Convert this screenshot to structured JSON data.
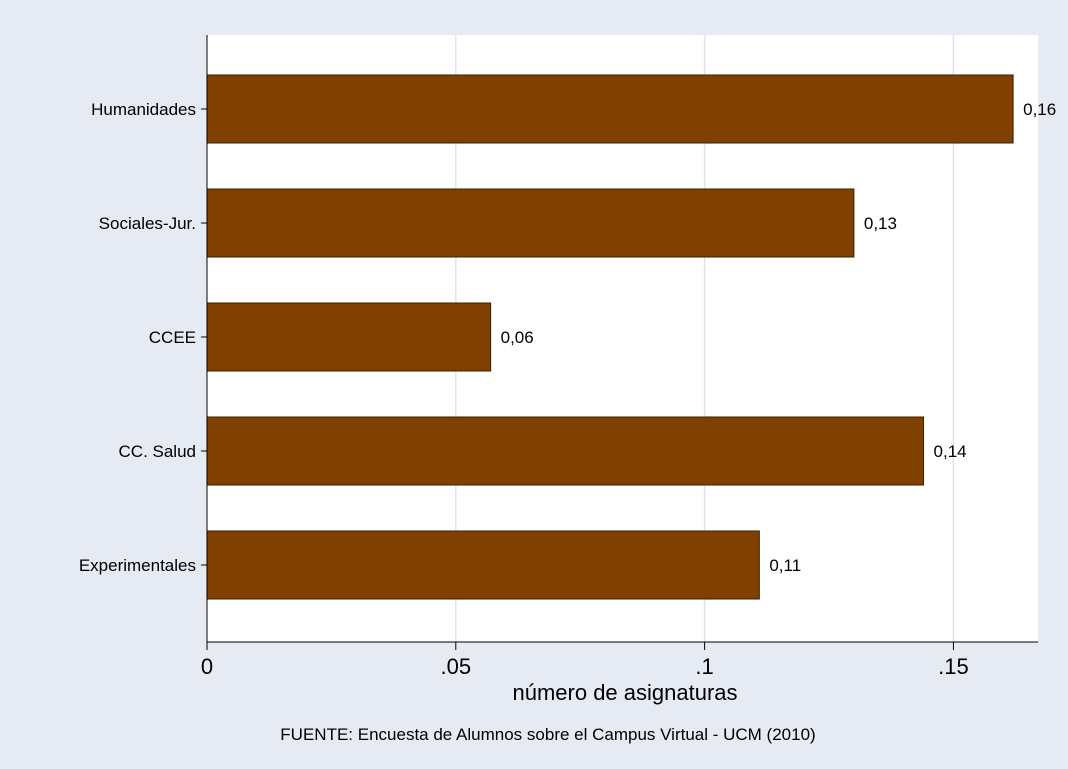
{
  "chart_data": {
    "type": "bar",
    "orientation": "horizontal",
    "categories": [
      "Humanidades",
      "Sociales-Jur.",
      "CCEE",
      "CC. Salud",
      "Experimentales"
    ],
    "values": [
      0.162,
      0.13,
      0.057,
      0.144,
      0.111
    ],
    "data_labels": [
      "0,16",
      "0,13",
      "0,06",
      "0,14",
      "0,11"
    ],
    "xlabel": "número de asignaturas",
    "ylabel": "",
    "xlim": [
      0,
      0.167
    ],
    "xticks": [
      0,
      0.05,
      0.1,
      0.15
    ],
    "xtick_labels": [
      "0",
      ".05",
      ".1",
      ".15"
    ],
    "grid": true,
    "note": "FUENTE: Encuesta de Alumnos sobre el Campus Virtual - UCM (2010)",
    "colors": {
      "bar": "#804000",
      "bar_edge": "#3a1f00",
      "background": "#e5eaf3",
      "plot_background": "#ffffff",
      "grid": "#dfe3f0"
    }
  }
}
